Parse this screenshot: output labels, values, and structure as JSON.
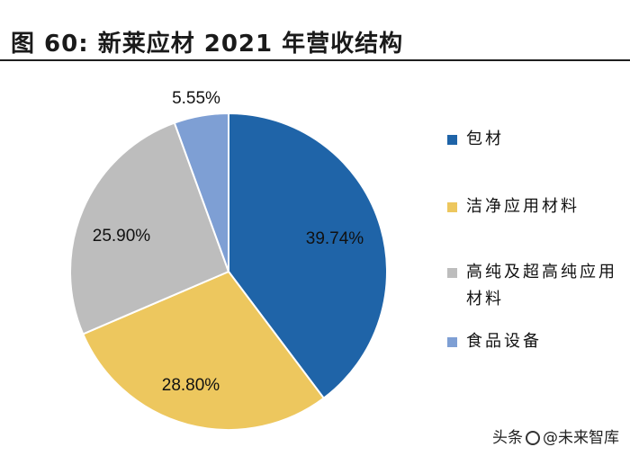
{
  "figure": {
    "label": "图 60:",
    "title": "新莱应材 2021 年营收结构"
  },
  "chart_data": {
    "type": "pie",
    "title": "新莱应材 2021 年营收结构",
    "start_angle_deg": 0,
    "direction": "clockwise",
    "slices": [
      {
        "name": "包材",
        "value": 39.74,
        "label": "39.74%",
        "color": "#1F64A8"
      },
      {
        "name": "洁净应用材料",
        "value": 28.8,
        "label": "28.80%",
        "color": "#EDC75E"
      },
      {
        "name": "高纯及超高纯应用材料",
        "value": 25.9,
        "label": "25.90%",
        "color": "#BDBDBD"
      },
      {
        "name": "食品设备",
        "value": 5.55,
        "label": "5.55%",
        "color": "#7E9FD4"
      }
    ],
    "legend_position": "right"
  },
  "legend": {
    "items": [
      {
        "label": "包材"
      },
      {
        "label": "洁净应用材料"
      },
      {
        "label": "高纯及超高纯应用材料"
      },
      {
        "label": "食品设备"
      }
    ]
  },
  "watermark": {
    "prefix": "头条",
    "handle": "@未来智库"
  }
}
